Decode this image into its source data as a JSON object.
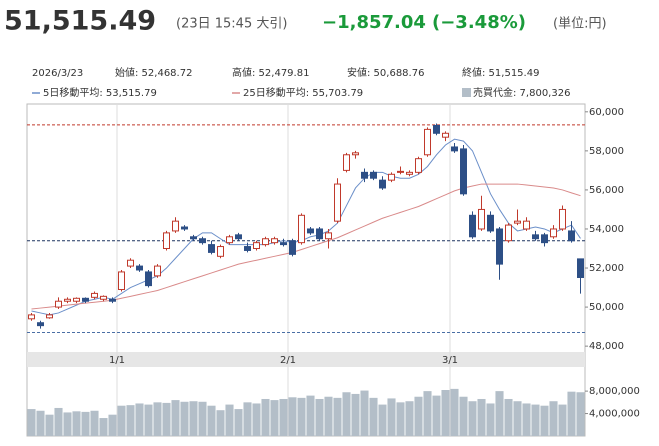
{
  "header": {
    "price": "51,515.49",
    "time": "(23日 15:45 大引)",
    "change": "−1,857.04",
    "change_pct": "(−3.48%)",
    "unit": "(単位:円)"
  },
  "info": {
    "date": "2026/3/23",
    "items": [
      "始値: 52,468.72",
      "高値: 52,479.81",
      "安値: 50,688.76",
      "終値: 51,515.49"
    ]
  },
  "chart_data": {
    "type": "candlestick",
    "xlim": [
      -0.5,
      61.5
    ],
    "xticks": [
      {
        "value": 9.5,
        "label": "1/1"
      },
      {
        "value": 28.5,
        "label": "2/1"
      },
      {
        "value": 46.5,
        "label": "3/1"
      }
    ],
    "ylim": [
      47700,
      60400
    ],
    "yticks": [
      {
        "value": 60000,
        "label": "60,000"
      },
      {
        "value": 58000,
        "label": "58,000"
      },
      {
        "value": 56000,
        "label": "56,000"
      },
      {
        "value": 54000,
        "label": "54,000"
      },
      {
        "value": 52000,
        "label": "52,000"
      },
      {
        "value": 50000,
        "label": "50,000"
      },
      {
        "value": 48000,
        "label": "48,000"
      }
    ],
    "up_color": "#c0392b",
    "down_color": "#2d4f86",
    "open": [
      49400,
      49200,
      49450,
      50000,
      50300,
      50300,
      50450,
      50500,
      50400,
      50400,
      50900,
      52100,
      52100,
      51800,
      51600,
      53000,
      53900,
      54100,
      53600,
      53500,
      53200,
      52600,
      53300,
      53700,
      53100,
      53000,
      53200,
      53300,
      53300,
      53400,
      53300,
      54000,
      54000,
      53500,
      54400,
      57000,
      57800,
      56900,
      56900,
      56500,
      56500,
      56900,
      56800,
      56900,
      57800,
      59300,
      58700,
      58200,
      58100,
      54700,
      54000,
      54700,
      54000,
      53400,
      54300,
      54000,
      53700,
      53700,
      53600,
      54000,
      53900,
      52468.72
    ],
    "high": [
      49700,
      49300,
      49700,
      50500,
      50500,
      50500,
      50500,
      50800,
      50600,
      50500,
      51900,
      52500,
      52200,
      51900,
      52200,
      53900,
      54600,
      54200,
      53700,
      53600,
      53400,
      53200,
      53700,
      53800,
      53300,
      53400,
      53600,
      53600,
      53500,
      53500,
      54800,
      54100,
      54100,
      54000,
      56600,
      57900,
      58000,
      57100,
      57000,
      56700,
      56900,
      57200,
      57000,
      57700,
      59200,
      59400,
      59000,
      58400,
      58300,
      54900,
      55700,
      54900,
      54100,
      54300,
      55000,
      54600,
      53900,
      53800,
      54200,
      55200,
      54400,
      52479.81
    ],
    "low": [
      49300,
      48900,
      49400,
      49900,
      50200,
      50200,
      50200,
      50400,
      50300,
      50200,
      50800,
      52000,
      51800,
      51000,
      51500,
      52900,
      53800,
      53900,
      53400,
      53200,
      52700,
      52500,
      53200,
      53400,
      52800,
      52900,
      53100,
      53200,
      53100,
      52600,
      53200,
      53700,
      53400,
      53000,
      54300,
      56900,
      57600,
      56400,
      56500,
      56000,
      56400,
      56800,
      56700,
      56800,
      57700,
      58800,
      58500,
      57900,
      55700,
      53500,
      53900,
      53800,
      51400,
      53300,
      54200,
      53900,
      53400,
      53100,
      53500,
      53900,
      53300,
      50688.76
    ],
    "close": [
      49600,
      49050,
      49600,
      50300,
      50400,
      50450,
      50300,
      50700,
      50550,
      50300,
      51800,
      52400,
      51900,
      51100,
      52100,
      53800,
      54400,
      54000,
      53500,
      53300,
      52800,
      53100,
      53600,
      53500,
      52900,
      53300,
      53500,
      53500,
      53200,
      52700,
      54700,
      53800,
      53500,
      53800,
      56300,
      57800,
      57900,
      56600,
      56600,
      56100,
      56800,
      56950,
      56900,
      57600,
      59100,
      58900,
      58900,
      58000,
      55800,
      53600,
      55000,
      53900,
      52200,
      54200,
      54400,
      54400,
      53500,
      53300,
      54000,
      55000,
      53400,
      51515.49
    ],
    "series": [
      {
        "name": "5日移動平均: 53,515.79",
        "color": "#6b8fc9",
        "values": [
          49800,
          49700,
          49600,
          49700,
          49900,
          50100,
          50300,
          50400,
          50500,
          50400,
          50700,
          51000,
          51200,
          51400,
          51600,
          52000,
          52500,
          53000,
          53500,
          53800,
          53800,
          53500,
          53200,
          53200,
          53200,
          53200,
          53200,
          53300,
          53400,
          53300,
          53400,
          53600,
          53700,
          53900,
          54300,
          55200,
          56100,
          56600,
          56900,
          56900,
          56700,
          56600,
          56600,
          56800,
          57200,
          57800,
          58300,
          58600,
          58500,
          58000,
          56900,
          55800,
          55000,
          54300,
          53900,
          54000,
          54100,
          54000,
          53800,
          54000,
          54200,
          53515.79
        ]
      },
      {
        "name": "25日移動平均: 55,703.79",
        "color": "#d98a8a",
        "values": [
          49900,
          49950,
          50000,
          50050,
          50100,
          50150,
          50200,
          50250,
          50300,
          50350,
          50450,
          50550,
          50650,
          50750,
          50850,
          51000,
          51150,
          51300,
          51450,
          51600,
          51750,
          51900,
          52050,
          52200,
          52300,
          52400,
          52500,
          52600,
          52700,
          52800,
          52950,
          53100,
          53250,
          53400,
          53550,
          53750,
          53950,
          54150,
          54350,
          54550,
          54700,
          54850,
          55000,
          55150,
          55350,
          55550,
          55750,
          55950,
          56100,
          56200,
          56300,
          56300,
          56300,
          56300,
          56300,
          56250,
          56200,
          56150,
          56100,
          56000,
          55850,
          55703.79
        ]
      }
    ],
    "hlines": [
      {
        "value": 59330,
        "color": "#c0392b"
      },
      {
        "value": 53400,
        "color": "#1f3560"
      },
      {
        "value": 48700,
        "color": "#4a6fa5"
      }
    ],
    "volume": {
      "name": "売買代金: 7,800,326",
      "color": "#b3bec8",
      "ylim": [
        0,
        12300000
      ],
      "yticks": [
        {
          "value": 8000000,
          "label": "8,000,000"
        },
        {
          "value": 4000000,
          "label": "4,000,000"
        }
      ],
      "values": [
        4800000,
        4500000,
        3800000,
        5000000,
        4200000,
        4400000,
        4300000,
        4500000,
        3200000,
        3800000,
        5400000,
        5500000,
        5800000,
        5600000,
        6000000,
        5900000,
        6400000,
        6100000,
        6200000,
        6100000,
        5400000,
        4600000,
        5600000,
        4800000,
        6000000,
        5800000,
        6600000,
        6400000,
        6600000,
        6900000,
        6800000,
        7200000,
        6600000,
        7000000,
        6800000,
        7800000,
        7500000,
        8100000,
        6800000,
        5600000,
        6700000,
        6000000,
        6200000,
        7000000,
        8000000,
        7200000,
        8200000,
        8400000,
        7000000,
        6200000,
        6600000,
        5800000,
        8000000,
        6600000,
        6200000,
        5800000,
        5600000,
        5400000,
        6200000,
        5600000,
        7900000,
        7800326
      ]
    }
  }
}
